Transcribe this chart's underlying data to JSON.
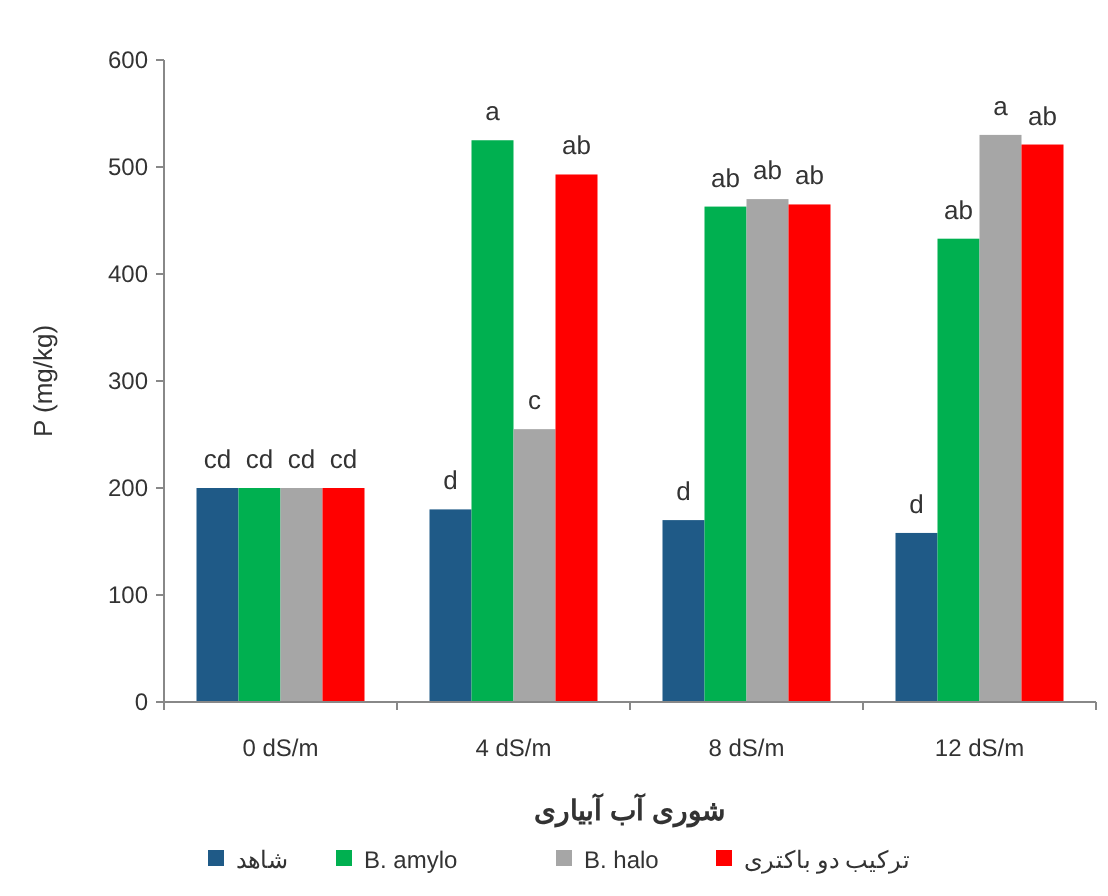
{
  "chart_data": {
    "type": "bar",
    "ylabel": "P (mg/kg)",
    "xlabel": "شوری آب آبیاری",
    "categories": [
      "0 dS/m",
      "4 dS/m",
      "8 dS/m",
      "12 dS/m"
    ],
    "series": [
      {
        "name": "شاهد",
        "color": "#1f5a87",
        "values": [
          200,
          180,
          170,
          158
        ],
        "value_labels": [
          "cd",
          "d",
          "d",
          "d"
        ]
      },
      {
        "name": "B. amylo",
        "color": "#00b050",
        "values": [
          200,
          525,
          463,
          433
        ],
        "value_labels": [
          "cd",
          "a",
          "ab",
          "ab"
        ]
      },
      {
        "name": "B. halo",
        "color": "#a6a6a6",
        "values": [
          200,
          255,
          470,
          530
        ],
        "value_labels": [
          "cd",
          "c",
          "ab",
          "a"
        ]
      },
      {
        "name": "ترکیب دو باکتری",
        "color": "#ff0000",
        "values": [
          200,
          493,
          465,
          521
        ],
        "value_labels": [
          "cd",
          "ab",
          "ab",
          "ab"
        ]
      }
    ],
    "ylim": [
      0,
      600
    ],
    "yticks": [
      0,
      100,
      200,
      300,
      400,
      500,
      600
    ],
    "grid": false,
    "legend": "bottom"
  }
}
